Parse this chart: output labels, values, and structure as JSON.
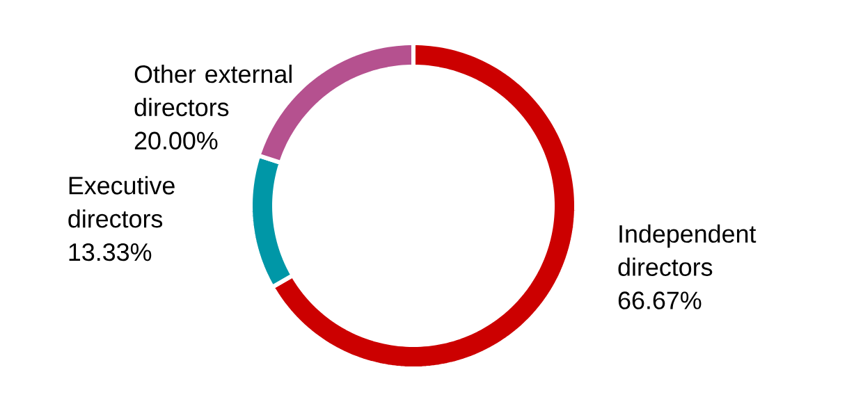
{
  "chart_data": {
    "type": "donut",
    "categories": [
      "Independent directors",
      "Executive directors",
      "Other external directors"
    ],
    "values": [
      66.67,
      13.33,
      20.0
    ],
    "value_labels": [
      "66.67%",
      "13.33%",
      "20.00%"
    ],
    "colors": [
      "#cc0000",
      "#0097a7",
      "#b5518f"
    ]
  }
}
